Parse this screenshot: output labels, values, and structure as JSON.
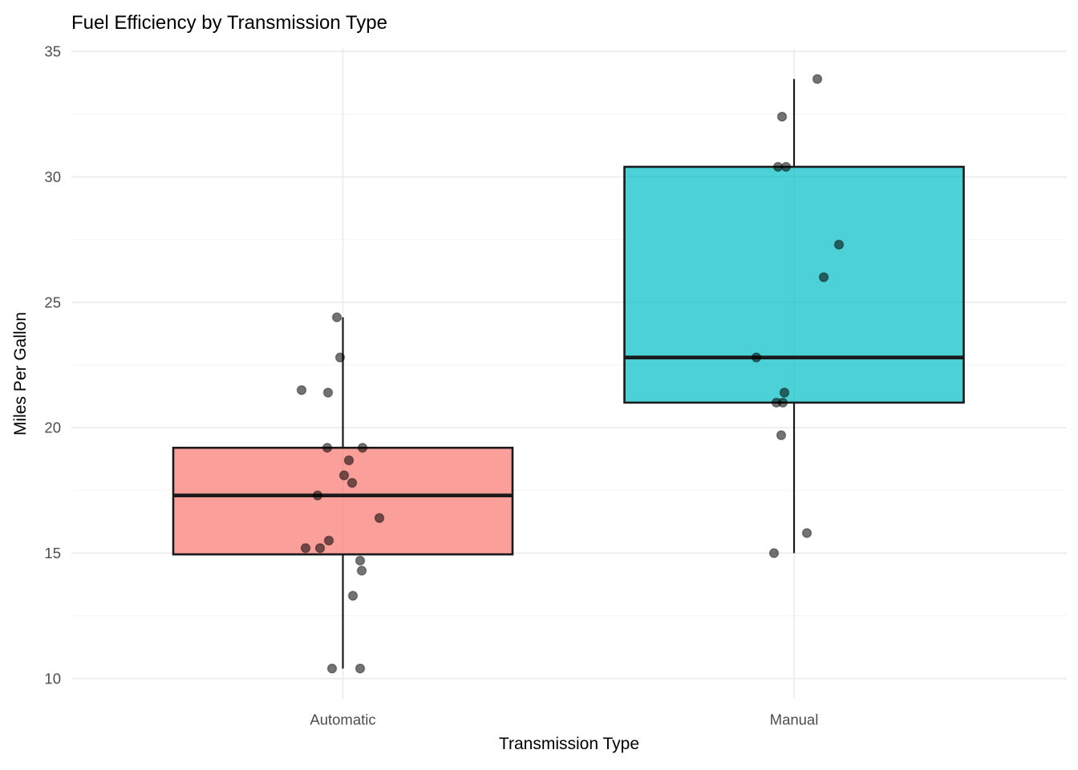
{
  "chart_data": {
    "type": "boxplot",
    "title": "Fuel Efficiency by Transmission Type",
    "xlabel": "Transmission Type",
    "ylabel": "Miles Per Gallon",
    "categories": [
      "Automatic",
      "Manual"
    ],
    "y_ticks": [
      10,
      15,
      20,
      25,
      30,
      35
    ],
    "y_minor_ticks": [
      12.5,
      17.5,
      22.5,
      27.5,
      32.5
    ],
    "ylim": [
      9.2,
      35.1
    ],
    "grid": "on",
    "legend": "none",
    "palette": {
      "automatic_fill": "#F8766D",
      "manual_fill": "#00BFC4",
      "fill_alpha": 0.7,
      "box_border": "#1A1A1A",
      "point_color": "#000000",
      "grid_major": "#E8E8E8",
      "grid_minor": "#F4F4F4",
      "tick_text": "#4D4D4D"
    },
    "series": [
      {
        "name": "Automatic",
        "fill": "#F8766D",
        "stats": {
          "lower_whisker": 10.4,
          "q1": 14.95,
          "median": 17.3,
          "q3": 19.2,
          "upper_whisker": 24.4
        },
        "points": [
          {
            "v": 24.4,
            "dx": -7.5
          },
          {
            "v": 22.8,
            "dx": -3.5
          },
          {
            "v": 21.5,
            "dx": -51.5
          },
          {
            "v": 21.4,
            "dx": -18.5
          },
          {
            "v": 19.2,
            "dx": -19.5
          },
          {
            "v": 19.2,
            "dx": 24.5
          },
          {
            "v": 18.7,
            "dx": 7.5
          },
          {
            "v": 18.1,
            "dx": 1.5
          },
          {
            "v": 17.8,
            "dx": 11.5
          },
          {
            "v": 17.3,
            "dx": -31.5
          },
          {
            "v": 16.4,
            "dx": 45.5
          },
          {
            "v": 15.5,
            "dx": -17.5
          },
          {
            "v": 15.2,
            "dx": -46.5
          },
          {
            "v": 15.2,
            "dx": -28.5
          },
          {
            "v": 14.7,
            "dx": 21.5
          },
          {
            "v": 14.3,
            "dx": 23.5
          },
          {
            "v": 13.3,
            "dx": 12.5
          },
          {
            "v": 10.4,
            "dx": -13.5
          },
          {
            "v": 10.4,
            "dx": 21.5
          }
        ]
      },
      {
        "name": "Manual",
        "fill": "#00BFC4",
        "stats": {
          "lower_whisker": 15.0,
          "q1": 21.0,
          "median": 22.8,
          "q3": 30.4,
          "upper_whisker": 33.9
        },
        "points": [
          {
            "v": 33.9,
            "dx": 29
          },
          {
            "v": 32.4,
            "dx": -15
          },
          {
            "v": 30.4,
            "dx": -20
          },
          {
            "v": 30.4,
            "dx": -10
          },
          {
            "v": 27.3,
            "dx": 56
          },
          {
            "v": 26.0,
            "dx": 37
          },
          {
            "v": 22.8,
            "dx": -47
          },
          {
            "v": 21.4,
            "dx": -12
          },
          {
            "v": 21.0,
            "dx": -22
          },
          {
            "v": 21.0,
            "dx": -14
          },
          {
            "v": 19.7,
            "dx": -16
          },
          {
            "v": 15.8,
            "dx": 16
          },
          {
            "v": 15.0,
            "dx": -25
          }
        ]
      }
    ]
  }
}
